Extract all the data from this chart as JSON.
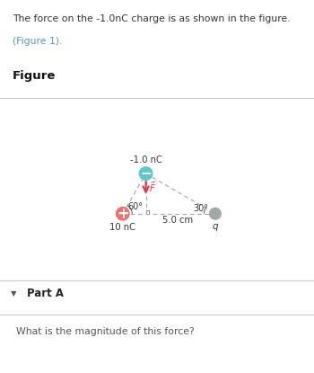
{
  "bg_color": "#ffffff",
  "header_bg": "#e8f4f8",
  "header_text": "The force on the -1.0nC charge is as shown in the figure.",
  "header_link": "(Figure 1).",
  "figure_label": "Figure",
  "part_label": "Part A",
  "part_question": "What is the magnitude of this force?",
  "charge_neg_label": "-1.0 nC",
  "charge_pos_label": "10 nC",
  "charge_q_label": "q",
  "angle1_label": "60°",
  "angle2_label": "30°",
  "distance_label": "5.0 cm",
  "neg_charge_color": "#5ec8c8",
  "pos_charge_color": "#f07070",
  "q_charge_color": "#a0a8a8",
  "arrow_color": "#e8334a",
  "dashed_color": "#aaaaaa",
  "header_link_color": "#5599bb",
  "sep_line_color": "#cccccc",
  "part_bg": "#f5f5f5",
  "part_triangle": "▼"
}
